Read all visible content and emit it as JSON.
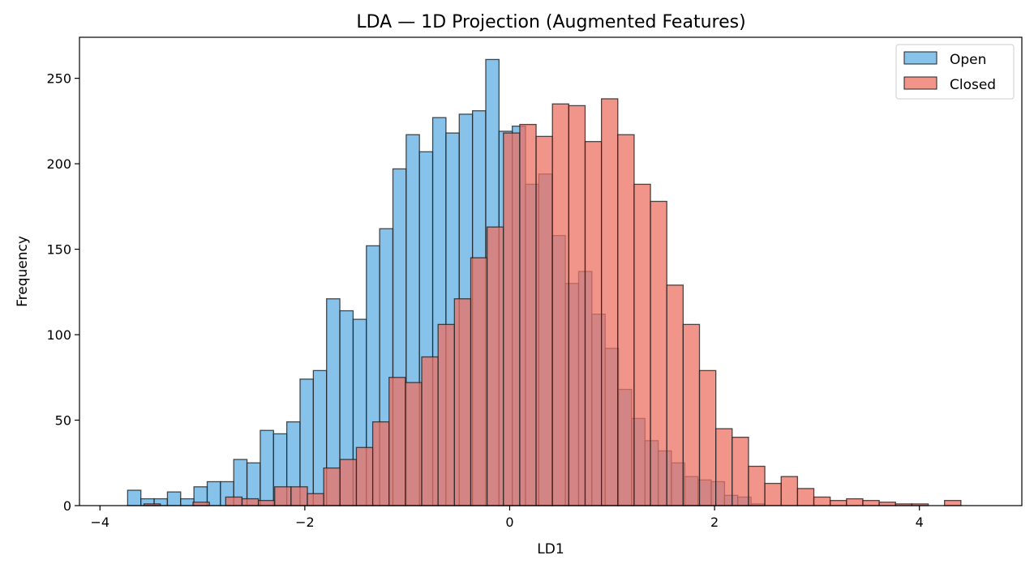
{
  "chart_data": {
    "type": "bar",
    "title": "LDA — 1D Projection (Augmented Features)",
    "xlabel": "LD1",
    "ylabel": "Frequency",
    "xlim": [
      -4.2,
      5.0
    ],
    "ylim": [
      0,
      274
    ],
    "xticks": [
      -4,
      -2,
      0,
      2,
      4
    ],
    "xtick_labels": [
      "−4",
      "−2",
      "0",
      "2",
      "4"
    ],
    "yticks": [
      0,
      50,
      100,
      150,
      200,
      250
    ],
    "ytick_labels": [
      "0",
      "50",
      "100",
      "150",
      "200",
      "250"
    ],
    "legend_position": "top-right",
    "series": [
      {
        "name": "Open",
        "color": "#5DADE2",
        "bin_width": 0.1295,
        "bin_start": -3.73,
        "values": [
          9,
          4,
          4,
          8,
          4,
          11,
          14,
          14,
          27,
          25,
          44,
          42,
          49,
          74,
          79,
          121,
          114,
          109,
          152,
          162,
          197,
          217,
          207,
          227,
          218,
          229,
          231,
          261,
          219,
          222,
          188,
          194,
          158,
          130,
          137,
          112,
          92,
          68,
          51,
          38,
          32,
          25,
          17,
          15,
          14,
          6,
          5,
          1
        ]
      },
      {
        "name": "Closed",
        "color": "#EC7063",
        "bin_width": 0.1595,
        "bin_start": -3.57,
        "values": [
          1,
          0,
          0,
          2,
          0,
          5,
          4,
          3,
          11,
          11,
          7,
          22,
          27,
          34,
          49,
          75,
          72,
          87,
          106,
          121,
          145,
          163,
          218,
          223,
          216,
          235,
          234,
          213,
          238,
          217,
          188,
          178,
          129,
          106,
          79,
          45,
          40,
          23,
          13,
          17,
          10,
          5,
          3,
          4,
          3,
          2,
          1,
          1,
          0,
          3
        ]
      }
    ]
  }
}
